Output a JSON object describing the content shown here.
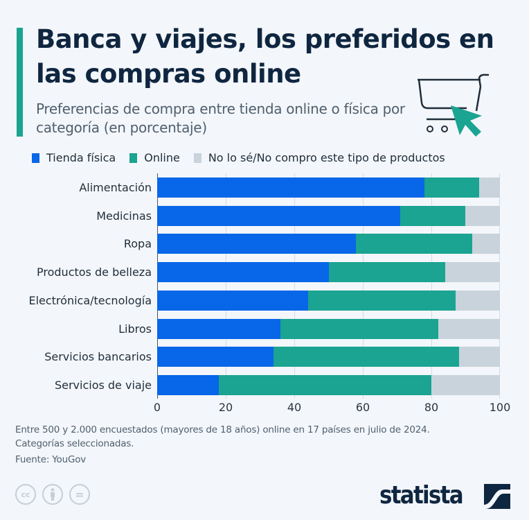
{
  "header": {
    "title": "Banca y viajes, los preferidos en las compras online",
    "subtitle": "Preferencias de compra entre tienda online o física por categoría (en porcentaje)",
    "accent_color": "#1aa491",
    "icon": "shopping-cart-cursor-icon"
  },
  "legend": [
    {
      "label": "Tienda física",
      "color": "#0866e8"
    },
    {
      "label": "Online",
      "color": "#1aa491"
    },
    {
      "label": "No lo sé/No compro este tipo de productos",
      "color": "#c9d3db"
    }
  ],
  "chart_data": {
    "type": "bar",
    "orientation": "horizontal",
    "stacked": true,
    "title": "Banca y viajes, los preferidos en las compras online",
    "subtitle": "Preferencias de compra entre tienda online o física por categoría (en porcentaje)",
    "categories": [
      "Alimentación",
      "Medicinas",
      "Ropa",
      "Productos de belleza",
      "Electrónica/tecnología",
      "Libros",
      "Servicios bancarios",
      "Servicios de viaje"
    ],
    "series": [
      {
        "name": "Tienda física",
        "color": "#0866e8",
        "values": [
          78,
          71,
          58,
          50,
          44,
          36,
          34,
          18
        ]
      },
      {
        "name": "Online",
        "color": "#1aa491",
        "values": [
          16,
          19,
          34,
          34,
          43,
          46,
          54,
          62
        ]
      },
      {
        "name": "No lo sé/No compro este tipo de productos",
        "color": "#c9d3db",
        "values": [
          6,
          10,
          8,
          16,
          13,
          18,
          12,
          20
        ]
      }
    ],
    "xlabel": "",
    "ylabel": "",
    "xlim": [
      0,
      100
    ],
    "x_ticks": [
      "0",
      "20",
      "40",
      "60",
      "80",
      "100"
    ],
    "grid": true,
    "legend_position": "top"
  },
  "notes": {
    "line1": "Entre 500 y 2.000 encuestados (mayores de 18 años) online en 17 países en julio de 2024.",
    "line2": "Categorías seleccionadas.",
    "source": "Fuente: YouGov"
  },
  "footer": {
    "license_icons": [
      "cc",
      "by",
      "nd"
    ],
    "license_text": {
      "cc": "cc",
      "nd": "="
    },
    "brand": "statista"
  }
}
